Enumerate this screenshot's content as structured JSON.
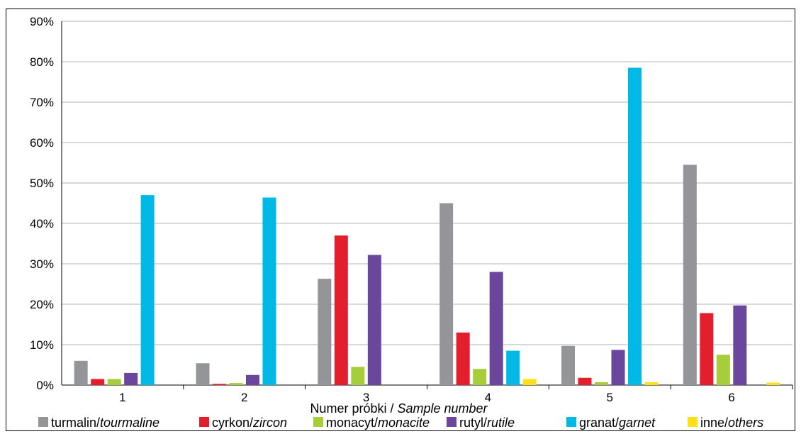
{
  "chart_data": {
    "type": "bar",
    "categories": [
      "1",
      "2",
      "3",
      "4",
      "5",
      "6"
    ],
    "series": [
      {
        "name": "turmalin/",
        "name_italic": "tourmaline",
        "color": "#939598",
        "values": [
          6.0,
          5.4,
          26.3,
          45.0,
          9.7,
          54.5
        ]
      },
      {
        "name": "cyrkon/",
        "name_italic": "zircon",
        "color": "#e31e2d",
        "values": [
          1.5,
          0.3,
          37.0,
          13.0,
          1.8,
          17.8
        ]
      },
      {
        "name": "monacyt/",
        "name_italic": "monacite",
        "color": "#a6cd3a",
        "values": [
          1.5,
          0.5,
          4.5,
          4.0,
          0.7,
          7.5
        ]
      },
      {
        "name": "rutyl/",
        "name_italic": "rutile",
        "color": "#6a479c",
        "values": [
          3.0,
          2.5,
          32.2,
          28.0,
          8.7,
          19.7
        ]
      },
      {
        "name": "granat/",
        "name_italic": "garnet",
        "color": "#00b9e6",
        "values": [
          47.0,
          46.4,
          0,
          8.5,
          78.5,
          0
        ]
      },
      {
        "name": "inne/",
        "name_italic": "others",
        "color": "#ffe01b",
        "values": [
          0,
          0,
          0,
          1.5,
          0.7,
          0.6
        ]
      }
    ],
    "xlabel": "Numer próbki / ",
    "xlabel_italic": "Sample number",
    "ylabel": "",
    "ylim": [
      0,
      90
    ],
    "yticks": [
      "0%",
      "10%",
      "20%",
      "30%",
      "40%",
      "50%",
      "60%",
      "70%",
      "80%",
      "90%"
    ],
    "grid": true,
    "legend_position": "bottom"
  }
}
